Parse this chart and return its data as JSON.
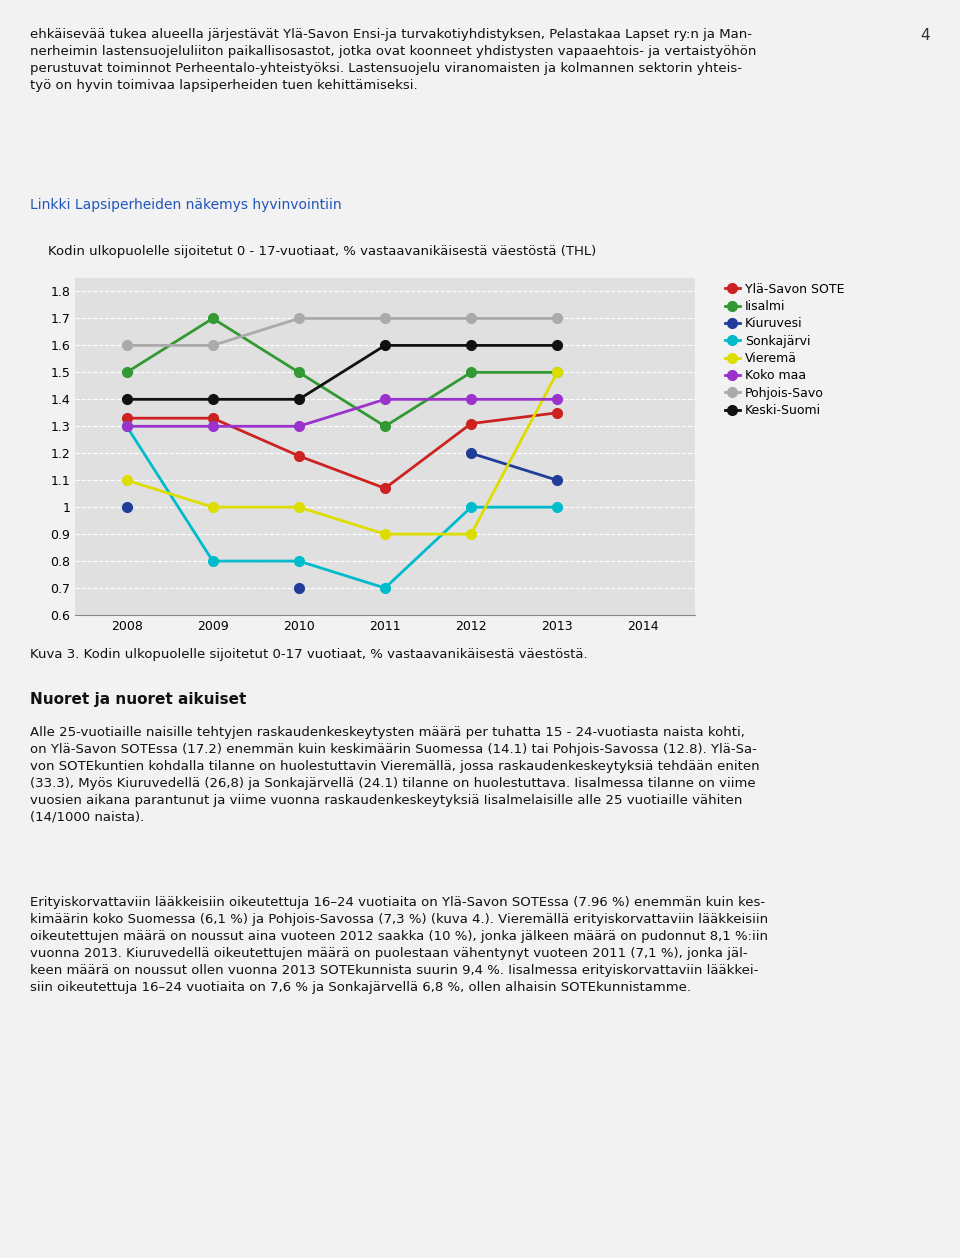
{
  "title": "Kodin ulkopuolelle sijoitetut 0 - 17-vuotiaat, % vastaavanikäisestä väestöstä (THL)",
  "years": [
    2008,
    2009,
    2010,
    2011,
    2012,
    2013,
    2014
  ],
  "series": [
    {
      "name": "Ylä-Savon SOTE",
      "color": "#cc2222",
      "values": [
        1.33,
        1.33,
        1.19,
        1.07,
        1.31,
        1.35,
        null
      ]
    },
    {
      "name": "Iisalmi",
      "color": "#339933",
      "values": [
        1.5,
        1.7,
        1.5,
        1.3,
        1.5,
        1.5,
        null
      ]
    },
    {
      "name": "Kiuruvesi",
      "color": "#1f3d99",
      "values": [
        1.0,
        null,
        0.7,
        null,
        1.2,
        1.1,
        null
      ]
    },
    {
      "name": "Sonkajärvi",
      "color": "#00bbcc",
      "values": [
        1.3,
        0.8,
        0.8,
        0.7,
        1.0,
        1.0,
        null
      ]
    },
    {
      "name": "Vieremä",
      "color": "#dddd00",
      "values": [
        1.1,
        1.0,
        1.0,
        0.9,
        0.9,
        1.5,
        null
      ]
    },
    {
      "name": "Koko maa",
      "color": "#9933cc",
      "values": [
        1.3,
        1.3,
        1.3,
        1.4,
        1.4,
        1.4,
        null
      ]
    },
    {
      "name": "Pohjois-Savo",
      "color": "#aaaaaa",
      "values": [
        1.6,
        1.6,
        1.7,
        1.7,
        1.7,
        1.7,
        null
      ]
    },
    {
      "name": "Keski-Suomi",
      "color": "#111111",
      "values": [
        1.4,
        1.4,
        1.4,
        1.6,
        1.6,
        1.6,
        null
      ]
    }
  ],
  "ylim": [
    0.6,
    1.85
  ],
  "yticks": [
    0.6,
    0.7,
    0.8,
    0.9,
    1.0,
    1.1,
    1.2,
    1.3,
    1.4,
    1.5,
    1.6,
    1.7,
    1.8
  ],
  "xlim": [
    2007.4,
    2014.6
  ],
  "page_bg": "#f2f2f2",
  "chart_box_bg": "#ffffff",
  "chart_plot_bg": "#e0e0e0",
  "grid_color": "#ffffff",
  "marker_size": 7,
  "linewidth": 2.0,
  "top_text": "ehkäisevää tukea alueella järjestävät Ylä-Savon Ensi-ja turvakotiyhdistyksen, Pelastakaa Lapset ry:n ja Man-\nnerheimin lastensuojeluliiton paikallisosastot, jotka ovat koonneet yhdistysten vapaaehtois- ja vertaistyöhön\nperustuvat toiminnot Perheentalo-yhteistyöksi. Lastensuojelu viranomaisten ja kolmannen sektorin yhteis-\ntyö on hyvin toimivaa lapsiperheiden tuen kehittämiseksi.",
  "linkki_text": "Linkki Lapsiperheiden näkemys hyvinvointiin",
  "caption_text": "Kuva 3. Kodin ulkopuolelle sijoitetut 0-17 vuotiaat, % vastaavanikäisestä väestöstä.",
  "heading2": "Nuoret ja nuoret aikuiset",
  "para2": "Alle 25-vuotiaille naisille tehtyjen raskaudenkeskeytysten määrä per tuhatta 15 - 24-vuotiasta naista kohti,\non Ylä-Savon SOTEssa (17.2) enemmän kuin keskimäärin Suomessa (14.1) tai Pohjois-Savossa (12.8). Ylä-Sa-\nvon SOTEkuntien kohdalla tilanne on huolestuttavin Vieremällä, jossa raskaudenkeskeytyksiä tehdään eniten\n(33.3), Myös Kiuruvedellä (26,8) ja Sonkajärvellä (24.1) tilanne on huolestuttava. Iisalmessa tilanne on viime\nvuosien aikana parantunut ja viime vuonna raskaudenkeskeytyksiä Iisalmelaisille alle 25 vuotiaille vähiten\n(14/1000 naista).",
  "para3": "Erityiskorvattaviin lääkkeisiin oikeutettuja 16–24 vuotiaita on Ylä-Savon SOTEssa (7.96 %) enemmän kuin kes-\nkimäärin koko Suomessa (6,1 %) ja Pohjois-Savossa (7,3 %) (kuva 4.). Vieremällä erityiskorvattaviin lääkkeisiin\noikeutettujen määrä on noussut aina vuoteen 2012 saakka (10 %), jonka jälkeen määrä on pudonnut 8,1 %:iin\nvuonna 2013. Kiuruvedellä oikeutettujen määrä on puolestaan vähentynyt vuoteen 2011 (7,1 %), jonka jäl-\nkeen määrä on noussut ollen vuonna 2013 SOTEkunnista suurin 9,4 %. Iisalmessa erityiskorvattaviin lääkkei-\nsiin oikeutettuja 16–24 vuotiaita on 7,6 % ja Sonkajärvellä 6,8 %, ollen alhaisin SOTEkunnistamme."
}
